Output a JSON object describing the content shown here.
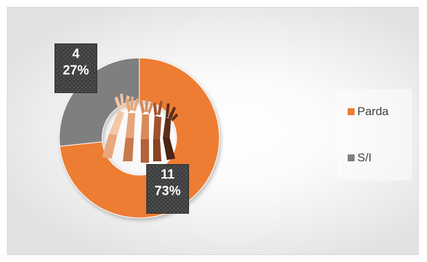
{
  "chart_data": {
    "type": "pie",
    "subtype": "donut",
    "categories": [
      "Parda",
      "S/I"
    ],
    "values": [
      11,
      4
    ],
    "percent_labels": [
      "73%",
      "27%"
    ],
    "colors": [
      "#ED7D31",
      "#7F7F7F"
    ],
    "title": "",
    "legend_position": "right",
    "center_image": "raised-hands-icon"
  },
  "labels": {
    "parda_value": "11",
    "parda_percent": "73%",
    "si_value": "4",
    "si_percent": "27%"
  },
  "legend": {
    "items": [
      {
        "label": "Parda",
        "color": "#ED7D31"
      },
      {
        "label": "S/I",
        "color": "#7F7F7F"
      }
    ]
  }
}
